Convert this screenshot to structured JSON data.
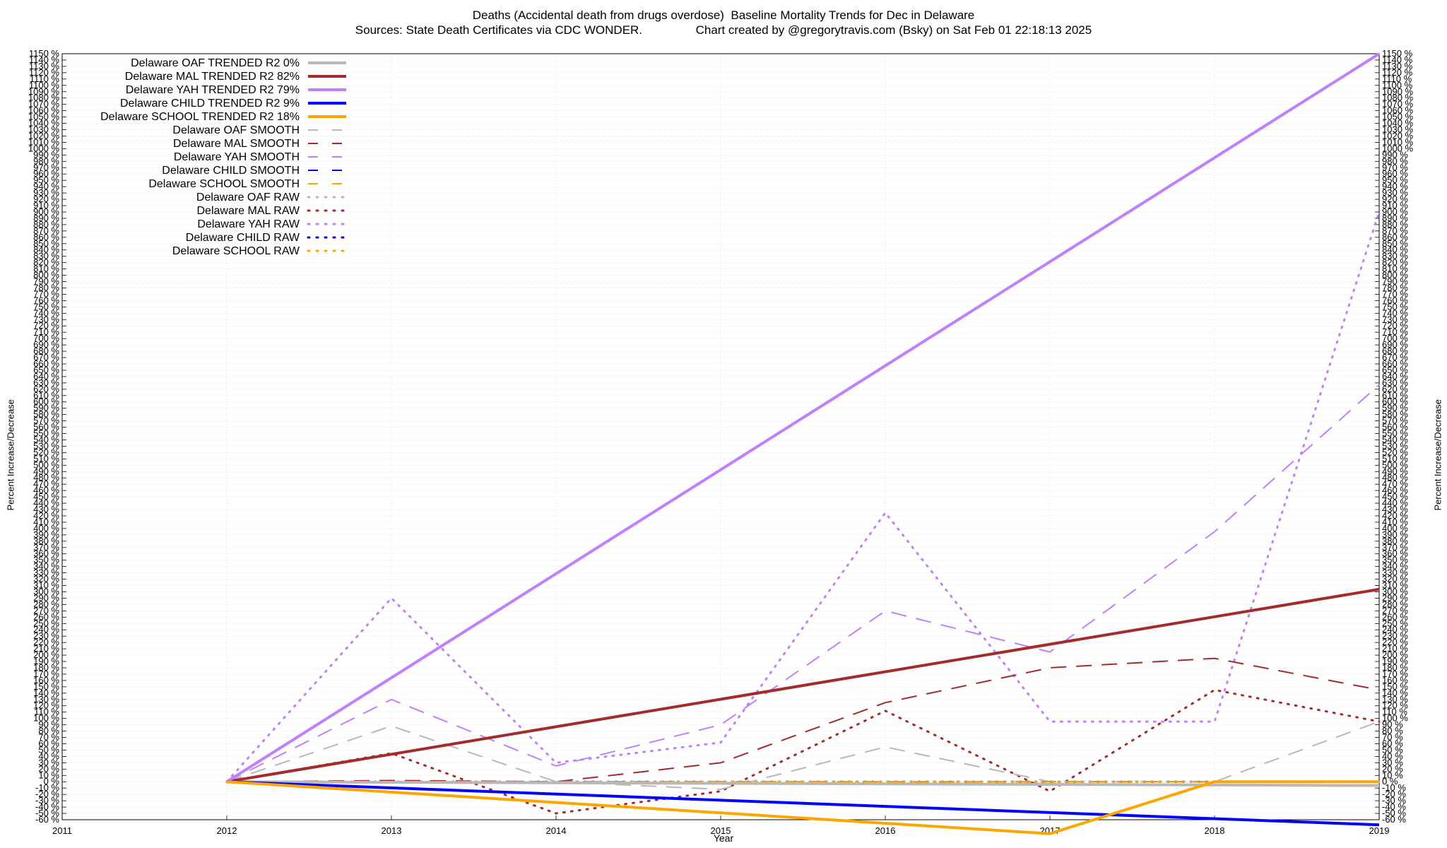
{
  "title_line1": "Deaths (Accidental death from drugs overdose)  Baseline Mortality Trends for Dec in Delaware",
  "title_line2": "Sources: State Death Certificates via CDC WONDER.                Chart created by @gregorytravis.com (Bsky) on Sat Feb 01 22:18:13 2025",
  "chart_data": {
    "type": "line",
    "title": "Deaths (Accidental death from drugs overdose)  Baseline Mortality Trends for Dec in Delaware",
    "subtitle": "Sources: State Death Certificates via CDC WONDER.                Chart created by @gregorytravis.com (Bsky) on Sat Feb 01 22:18:13 2025",
    "xlabel": "Year",
    "ylabel": "Percent Increase/Decrease",
    "xlim": [
      2011,
      2019
    ],
    "ylim": [
      -60,
      1150
    ],
    "xticks": [
      2011,
      2012,
      2013,
      2014,
      2015,
      2016,
      2017,
      2018,
      2019
    ],
    "ytick_step": 10,
    "ytick_suffix": " %",
    "grid": true,
    "legend_position": "top-left",
    "series": [
      {
        "name": "Delaware OAF TRENDED R2  0%",
        "color": "#b8b8b8",
        "style": "solid",
        "width": 4,
        "x": [
          2012,
          2019
        ],
        "y": [
          0,
          -6
        ]
      },
      {
        "name": "Delaware MAL TRENDED R2  82%",
        "color": "#a52a2a",
        "style": "solid",
        "width": 4,
        "x": [
          2012,
          2019
        ],
        "y": [
          0,
          304
        ]
      },
      {
        "name": "Delaware YAH TRENDED R2  79%",
        "color": "#bf7fff",
        "style": "solid",
        "width": 4,
        "x": [
          2012,
          2019
        ],
        "y": [
          0,
          1150
        ]
      },
      {
        "name": "Delaware CHILD TRENDED R2  9%",
        "color": "#0000ff",
        "style": "solid",
        "width": 4,
        "x": [
          2012,
          2019
        ],
        "y": [
          0,
          -68
        ]
      },
      {
        "name": "Delaware SCHOOL TRENDED R2  18%",
        "color": "#ffa500",
        "style": "solid",
        "width": 4,
        "x": [
          2012,
          2017,
          2018,
          2019
        ],
        "y": [
          0,
          -82,
          0,
          0
        ]
      },
      {
        "name": "Delaware OAF SMOOTH",
        "color": "#b8b8b8",
        "style": "dash",
        "width": 2,
        "x": [
          2012,
          2013,
          2014,
          2015,
          2016,
          2017,
          2018,
          2019
        ],
        "y": [
          0,
          88,
          0,
          -12,
          55,
          0,
          0,
          95
        ]
      },
      {
        "name": "Delaware MAL SMOOTH",
        "color": "#a52a2a",
        "style": "dash",
        "width": 2,
        "x": [
          2012,
          2013,
          2014,
          2015,
          2016,
          2017,
          2018,
          2019
        ],
        "y": [
          0,
          2,
          0,
          30,
          125,
          180,
          195,
          145
        ]
      },
      {
        "name": "Delaware YAH SMOOTH",
        "color": "#bf7fff",
        "style": "dash",
        "width": 2,
        "x": [
          2012,
          2013,
          2014,
          2015,
          2016,
          2017,
          2018,
          2019
        ],
        "y": [
          0,
          130,
          25,
          90,
          270,
          205,
          395,
          627
        ]
      },
      {
        "name": "Delaware CHILD SMOOTH",
        "color": "#0000ff",
        "style": "dash",
        "width": 2,
        "x": [
          2012,
          2013,
          2014,
          2015,
          2016,
          2017,
          2018,
          2019
        ],
        "y": [
          0,
          0,
          0,
          0,
          0,
          0,
          0,
          0
        ]
      },
      {
        "name": "Delaware SCHOOL SMOOTH",
        "color": "#ffa500",
        "style": "dash",
        "width": 2,
        "x": [
          2012,
          2013,
          2014,
          2015,
          2016,
          2017,
          2018,
          2019
        ],
        "y": [
          0,
          0,
          0,
          0,
          0,
          0,
          0,
          0
        ]
      },
      {
        "name": "Delaware OAF RAW",
        "color": "#b8b8b8",
        "style": "dot",
        "width": 3,
        "x": [
          2012,
          2019
        ],
        "y": [
          0,
          0
        ]
      },
      {
        "name": "Delaware MAL RAW",
        "color": "#a52a2a",
        "style": "dot",
        "width": 3,
        "x": [
          2012,
          2013,
          2014,
          2015,
          2016,
          2017,
          2018,
          2019
        ],
        "y": [
          0,
          45,
          -50,
          -15,
          112,
          -15,
          145,
          95
        ]
      },
      {
        "name": "Delaware YAH RAW",
        "color": "#bf7fff",
        "style": "dot",
        "width": 3,
        "x": [
          2012,
          2013,
          2014,
          2015,
          2016,
          2017,
          2018,
          2019
        ],
        "y": [
          0,
          290,
          30,
          62,
          425,
          95,
          95,
          900
        ]
      },
      {
        "name": "Delaware CHILD RAW",
        "color": "#0000ff",
        "style": "dot",
        "width": 3,
        "x": [
          2012,
          2019
        ],
        "y": [
          0,
          0
        ]
      },
      {
        "name": "Delaware SCHOOL RAW",
        "color": "#ffa500",
        "style": "dot",
        "width": 3,
        "x": [
          2012,
          2019
        ],
        "y": [
          0,
          0
        ]
      }
    ]
  }
}
